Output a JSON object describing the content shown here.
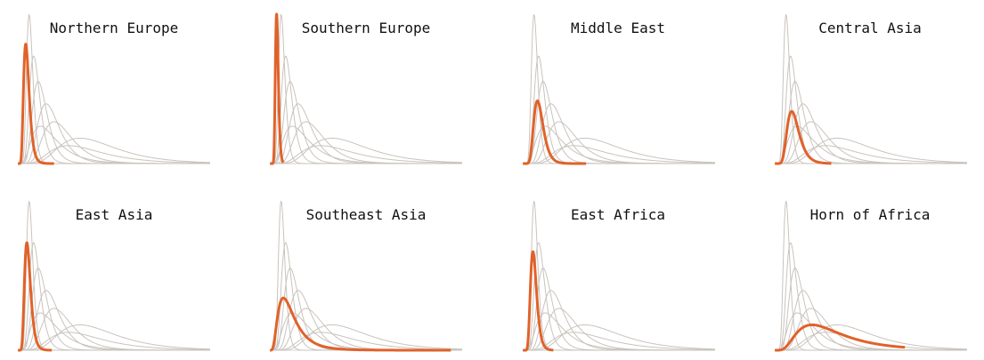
{
  "chart_data": {
    "type": "line",
    "description_axes": "none",
    "colors": {
      "highlight": "#e0622a",
      "background_curve": "#c9c3bd",
      "baseline": "#d6d1cc"
    },
    "background_curves": [
      {
        "mode": 0.1,
        "sigma": 0.28,
        "peak": 1.0
      },
      {
        "mode": 0.14,
        "sigma": 0.33,
        "peak": 0.72
      },
      {
        "mode": 0.18,
        "sigma": 0.36,
        "peak": 0.55
      },
      {
        "mode": 0.25,
        "sigma": 0.38,
        "peak": 0.4
      },
      {
        "mode": 0.32,
        "sigma": 0.4,
        "peak": 0.28
      },
      {
        "mode": 0.55,
        "sigma": 0.45,
        "peak": 0.17
      },
      {
        "mode": 0.2,
        "sigma": 0.55,
        "peak": 0.25
      },
      {
        "mode": 0.45,
        "sigma": 0.5,
        "peak": 0.12
      }
    ],
    "panels": [
      {
        "title": "Northern Europe",
        "highlight": {
          "mode": 0.07,
          "sigma": 0.35,
          "peak": 0.8,
          "xmax": 0.32
        }
      },
      {
        "title": "Southern Europe",
        "highlight": {
          "mode": 0.06,
          "sigma": 0.22,
          "peak": 1.0,
          "xmax": 0.12
        }
      },
      {
        "title": "Middle East",
        "highlight": {
          "mode": 0.13,
          "sigma": 0.32,
          "peak": 0.42,
          "xmax": 0.56
        }
      },
      {
        "title": "Central Asia",
        "highlight": {
          "mode": 0.15,
          "sigma": 0.35,
          "peak": 0.35,
          "xmax": 0.5
        }
      },
      {
        "title": "East Asia",
        "highlight": {
          "mode": 0.08,
          "sigma": 0.33,
          "peak": 0.72,
          "xmax": 0.3
        }
      },
      {
        "title": "Southeast Asia",
        "highlight": {
          "mode": 0.12,
          "sigma": 0.6,
          "peak": 0.35,
          "xmax": 1.6
        }
      },
      {
        "title": "East Africa",
        "highlight": {
          "mode": 0.09,
          "sigma": 0.3,
          "peak": 0.66,
          "xmax": 0.27
        }
      },
      {
        "title": "Horn of Africa",
        "highlight": {
          "mode": 0.33,
          "sigma": 0.6,
          "peak": 0.17,
          "xmax": 1.15
        }
      }
    ]
  }
}
